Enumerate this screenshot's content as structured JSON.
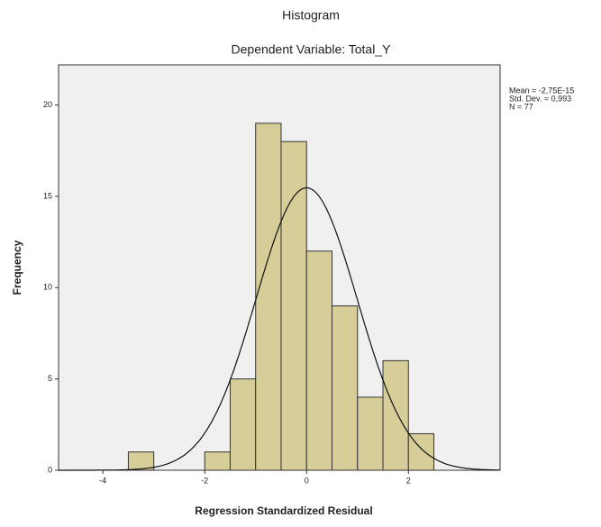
{
  "chart_data": {
    "type": "histogram",
    "title": "Histogram",
    "subtitle": "Dependent Variable: Total_Y",
    "x_label": "Regression Standardized Residual",
    "y_label": "Frequency",
    "bins": [
      -3.5,
      -3,
      -2.5,
      -2,
      -1.5,
      -1,
      -0.5,
      0,
      0.5,
      1,
      1.5,
      2,
      2.5
    ],
    "values": [
      1,
      0,
      0,
      1,
      5,
      19,
      18,
      12,
      9,
      4,
      6,
      2
    ],
    "color": "#d6cd98",
    "xlim": [
      -4.87,
      3.8
    ],
    "xticks": [
      -4,
      -2,
      0,
      2
    ],
    "ylim": [
      0,
      22.2
    ],
    "yticks": [
      0,
      5,
      10,
      15,
      20
    ],
    "stats": {
      "mean": {
        "value": -2.75e-15,
        "label": "Mean = -2,75E-15"
      },
      "std": {
        "value": 0.993,
        "label": "Std. Dev. = 0,993"
      },
      "n": {
        "value": 77,
        "label": "N = 77"
      }
    }
  }
}
